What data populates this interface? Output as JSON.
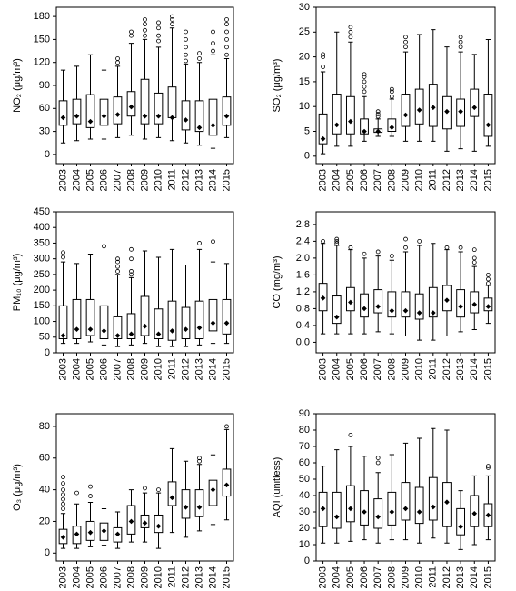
{
  "chart_data": [
    {
      "type": "box",
      "y_label": "NO₂ (μg/m³)",
      "categories": [
        "2003",
        "2004",
        "2005",
        "2006",
        "2007",
        "2008",
        "2009",
        "2010",
        "2011",
        "2012",
        "2013",
        "2014",
        "2015"
      ],
      "whisker_low": [
        15,
        18,
        20,
        20,
        22,
        25,
        20,
        22,
        18,
        15,
        12,
        8,
        22
      ],
      "q1": [
        38,
        40,
        35,
        38,
        40,
        50,
        40,
        40,
        48,
        32,
        30,
        25,
        38
      ],
      "mean": [
        48,
        50,
        43,
        50,
        52,
        62,
        50,
        50,
        48,
        45,
        35,
        38,
        50
      ],
      "q3": [
        70,
        72,
        78,
        72,
        75,
        82,
        98,
        80,
        88,
        70,
        70,
        72,
        75
      ],
      "whisker_high": [
        110,
        115,
        130,
        110,
        115,
        145,
        150,
        140,
        165,
        118,
        120,
        130,
        125
      ],
      "outliers": [
        [],
        [],
        [],
        [],
        [
          120,
          125
        ],
        [
          155,
          160
        ],
        [
          155,
          162,
          170,
          176
        ],
        [
          148,
          155,
          165,
          172
        ],
        [
          170,
          176,
          180
        ],
        [
          122,
          130,
          140,
          150,
          160
        ],
        [
          125,
          132
        ],
        [
          135,
          145,
          160
        ],
        [
          130,
          140,
          150,
          160,
          170,
          176
        ]
      ],
      "ylim": [
        -12,
        192
      ],
      "yticks": [
        0,
        30,
        60,
        90,
        120,
        150,
        180
      ]
    },
    {
      "type": "box",
      "y_label": "SO₂ (μg/m³)",
      "categories": [
        "2003",
        "2004",
        "2005",
        "2006",
        "2007",
        "2008",
        "2009",
        "2010",
        "2011",
        "2012",
        "2013",
        "2014",
        "2015"
      ],
      "whisker_low": [
        0.5,
        2,
        2,
        3,
        4,
        4,
        3,
        3,
        3,
        1,
        1.5,
        1,
        2
      ],
      "q1": [
        2.5,
        4.5,
        4.5,
        4.5,
        4.8,
        5,
        6,
        6.5,
        6,
        5.5,
        6,
        8,
        4
      ],
      "mean": [
        3.5,
        6.3,
        7,
        5,
        5,
        5.8,
        8.3,
        9.3,
        9.8,
        9,
        9,
        9.8,
        6.3
      ],
      "q3": [
        8.5,
        12.5,
        12,
        7.5,
        5.5,
        7.5,
        12.5,
        13.5,
        14.5,
        12,
        11.5,
        13.5,
        12.5
      ],
      "whisker_high": [
        17,
        25,
        23,
        12,
        7.5,
        11.5,
        21,
        24.5,
        25.5,
        22,
        21,
        20.5,
        23.5
      ],
      "outliers": [
        [
          18,
          20,
          20.5
        ],
        [],
        [
          24,
          25,
          26
        ],
        [
          13,
          14,
          15,
          16,
          16.5
        ],
        [
          8,
          8.5,
          9
        ],
        [
          12,
          13,
          13.5
        ],
        [
          22,
          23,
          24
        ],
        [],
        [],
        [],
        [
          22,
          23,
          24
        ],
        [],
        []
      ],
      "ylim": [
        -1.5,
        30
      ],
      "yticks": [
        0,
        5,
        10,
        15,
        20,
        25,
        30
      ]
    },
    {
      "type": "box",
      "y_label": "PM₁₀ (μg/m³)",
      "categories": [
        "2003",
        "2004",
        "2005",
        "2006",
        "2007",
        "2008",
        "2009",
        "2010",
        "2011",
        "2012",
        "2013",
        "2014",
        "2015"
      ],
      "whisker_low": [
        30,
        30,
        35,
        25,
        20,
        25,
        30,
        20,
        20,
        20,
        25,
        30,
        30
      ],
      "q1": [
        45,
        45,
        55,
        45,
        45,
        45,
        55,
        45,
        40,
        45,
        45,
        70,
        60
      ],
      "mean": [
        55,
        75,
        75,
        70,
        55,
        60,
        85,
        60,
        70,
        75,
        80,
        95,
        95
      ],
      "q3": [
        150,
        170,
        170,
        150,
        115,
        125,
        180,
        140,
        165,
        145,
        165,
        170,
        170
      ],
      "whisker_high": [
        290,
        285,
        315,
        280,
        250,
        240,
        325,
        305,
        330,
        280,
        330,
        290,
        285
      ],
      "outliers": [
        [
          305,
          320
        ],
        [],
        [],
        [
          340
        ],
        [
          260,
          275,
          290,
          300
        ],
        [
          250,
          260,
          300,
          330
        ],
        [],
        [],
        [],
        [],
        [
          350
        ],
        [
          355
        ],
        []
      ],
      "ylim": [
        0,
        450
      ],
      "yticks": [
        0,
        50,
        100,
        150,
        200,
        250,
        300,
        350,
        400,
        450
      ]
    },
    {
      "type": "box",
      "y_label": "CO (mg/m³)",
      "categories": [
        "2003",
        "2004",
        "2005",
        "2006",
        "2007",
        "2008",
        "2009",
        "2010",
        "2011",
        "2012",
        "2013",
        "2014",
        "2015"
      ],
      "whisker_low": [
        0.2,
        0.2,
        0.2,
        0.2,
        0.25,
        0.2,
        0.15,
        0.05,
        0.05,
        0.15,
        0.25,
        0.3,
        0.45
      ],
      "q1": [
        0.75,
        0.45,
        0.75,
        0.6,
        0.7,
        0.6,
        0.6,
        0.55,
        0.6,
        0.75,
        0.6,
        0.7,
        0.75
      ],
      "mean": [
        1.05,
        0.6,
        0.95,
        0.8,
        0.85,
        0.75,
        0.75,
        0.7,
        0.7,
        1.0,
        0.85,
        0.9,
        0.85
      ],
      "q3": [
        1.4,
        1.1,
        1.3,
        1.15,
        1.25,
        1.2,
        1.2,
        1.15,
        1.3,
        1.35,
        1.25,
        1.2,
        1.05
      ],
      "whisker_high": [
        2.35,
        2.3,
        2.2,
        2.0,
        2.05,
        1.95,
        2.15,
        2.3,
        2.35,
        2.2,
        2.15,
        1.8,
        1.35
      ],
      "outliers": [
        [
          2.4
        ],
        [
          2.35,
          2.4,
          2.45
        ],
        [
          2.25
        ],
        [
          2.1
        ],
        [
          2.15
        ],
        [
          2.05
        ],
        [
          2.25,
          2.45
        ],
        [
          2.4
        ],
        [],
        [
          2.25
        ],
        [
          2.25
        ],
        [
          1.9,
          2.0,
          2.2
        ],
        [
          1.4,
          1.5,
          1.6
        ]
      ],
      "ylim": [
        -0.25,
        3.1
      ],
      "yticks": [
        {
          "value": 0,
          "label": "0.0"
        },
        0.4,
        0.8,
        1.2,
        1.6,
        {
          "value": 2,
          "label": "2.0"
        },
        2.4,
        2.8
      ]
    },
    {
      "type": "box",
      "y_label": "O₃ (μg/m³)",
      "categories": [
        "2003",
        "2004",
        "2005",
        "2006",
        "2007",
        "2008",
        "2009",
        "2010",
        "2011",
        "2012",
        "2013",
        "2014",
        "2015"
      ],
      "whisker_low": [
        3,
        3,
        4,
        5,
        3,
        7,
        7,
        3,
        13,
        10,
        14,
        18,
        21
      ],
      "q1": [
        6,
        6,
        8,
        8,
        7,
        12,
        16,
        13,
        30,
        22,
        23,
        30,
        36
      ],
      "mean": [
        10,
        12,
        13,
        14,
        12,
        20,
        19,
        17,
        35,
        29,
        29,
        40,
        43
      ],
      "q3": [
        15,
        17,
        20,
        19,
        16,
        30,
        24,
        24,
        45,
        40,
        40,
        46,
        53
      ],
      "whisker_high": [
        25,
        31,
        32,
        28,
        26,
        40,
        38,
        38,
        66,
        58,
        56,
        62,
        78
      ],
      "outliers": [
        [
          28,
          31,
          34,
          37,
          40,
          44,
          48
        ],
        [
          38
        ],
        [
          36,
          42
        ],
        [],
        [],
        [],
        [
          41
        ],
        [
          40
        ],
        [],
        [],
        [
          58,
          60
        ],
        [],
        [
          80
        ]
      ],
      "ylim": [
        -5,
        88
      ],
      "yticks": [
        0,
        20,
        40,
        60,
        80
      ]
    },
    {
      "type": "box",
      "y_label": "AQI (unitless)",
      "categories": [
        "2003",
        "2004",
        "2005",
        "2006",
        "2007",
        "2008",
        "2009",
        "2010",
        "2011",
        "2012",
        "2013",
        "2014",
        "2015"
      ],
      "whisker_low": [
        11,
        11,
        12,
        13,
        11,
        13,
        13,
        11,
        14,
        11,
        7,
        10,
        13
      ],
      "q1": [
        21,
        20,
        24,
        22,
        20,
        22,
        25,
        23,
        25,
        21,
        16,
        21,
        21
      ],
      "mean": [
        32,
        27,
        32,
        30,
        27,
        30,
        32,
        30,
        33,
        36,
        21,
        29,
        28
      ],
      "q3": [
        42,
        42,
        46,
        43,
        38,
        42,
        48,
        45,
        51,
        48,
        32,
        40,
        35
      ],
      "whisker_high": [
        58,
        68,
        70,
        64,
        54,
        65,
        72,
        75,
        81,
        80,
        43,
        52,
        52
      ],
      "outliers": [
        [],
        [],
        [
          77
        ],
        [],
        [
          60,
          63
        ],
        [],
        [],
        [],
        [],
        [],
        [],
        [],
        [
          57,
          58
        ]
      ],
      "ylim": [
        0,
        90
      ],
      "yticks": [
        0,
        10,
        20,
        30,
        40,
        50,
        60,
        70,
        80,
        90
      ]
    }
  ]
}
